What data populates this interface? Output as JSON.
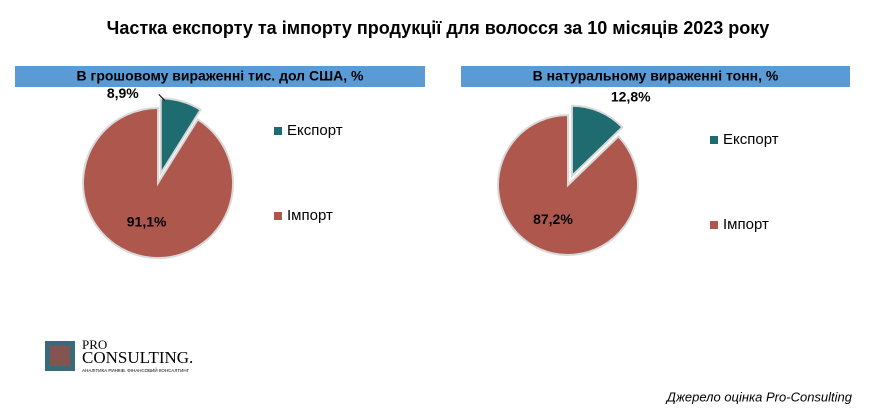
{
  "title": "Частка експорту та імпорту продукції для волосся за 10 місяців 2023 року",
  "source": "Джерело  оцінка Pro-Consulting",
  "logo": {
    "top": "PRO",
    "main": "CONSULTING.",
    "tagline": "АНАЛІТИКА РИНКІВ. ФІНАНСОВИЙ КОНСАЛТИНГ"
  },
  "chart_data": [
    {
      "type": "pie",
      "subtitle": "В грошовому вираженні тис. дол США, %",
      "categories": [
        "Експорт",
        "Імпорт"
      ],
      "values": [
        8.9,
        91.1
      ],
      "value_labels": [
        "8,9%",
        "91,1%"
      ],
      "colors": [
        "#1e6b70",
        "#ad574d"
      ],
      "legend": "right"
    },
    {
      "type": "pie",
      "subtitle": "В натуральному вираженні тонн, %",
      "categories": [
        "Експорт",
        "Імпорт"
      ],
      "values": [
        12.8,
        87.2
      ],
      "value_labels": [
        "12,8%",
        "87,2%"
      ],
      "colors": [
        "#1e6b70",
        "#ad574d"
      ],
      "legend": "right"
    }
  ]
}
